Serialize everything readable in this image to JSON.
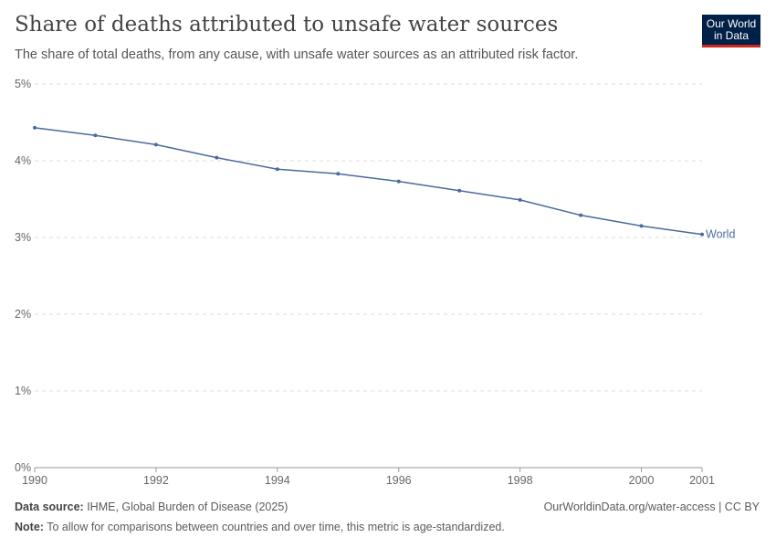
{
  "header": {
    "title": "Share of deaths attributed to unsafe water sources",
    "subtitle": "The share of total deaths, from any cause, with unsafe water sources as an attributed risk factor.",
    "logo": "Our World in Data"
  },
  "chart_data": {
    "type": "line",
    "title": "Share of deaths attributed to unsafe water sources",
    "x": [
      1990,
      1991,
      1992,
      1993,
      1994,
      1995,
      1996,
      1997,
      1998,
      1999,
      2000,
      2001
    ],
    "series": [
      {
        "name": "World",
        "values": [
          4.43,
          4.33,
          4.21,
          4.04,
          3.89,
          3.83,
          3.73,
          3.61,
          3.49,
          3.29,
          3.15,
          3.04
        ],
        "color": "#4c6a9c"
      }
    ],
    "xticks": [
      "1990",
      "1992",
      "1994",
      "1996",
      "1998",
      "2000",
      "2001"
    ],
    "yticks": [
      "0%",
      "1%",
      "2%",
      "3%",
      "4%",
      "5%"
    ],
    "xlim": [
      1990,
      2001
    ],
    "ylim": [
      0,
      5
    ],
    "grid": "horizontal dashed",
    "legend": "line-end label"
  },
  "footer": {
    "source_label": "Data source:",
    "source": " IHME, Global Burden of Disease (2025)",
    "url": "OurWorldinData.org/water-access | CC BY",
    "note_label": "Note:",
    "note": " To allow for comparisons between countries and over time, this metric is age-standardized."
  }
}
